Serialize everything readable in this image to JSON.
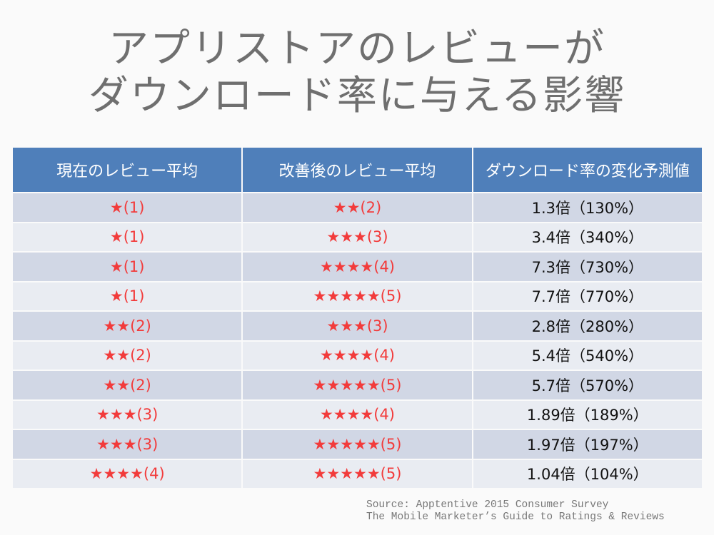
{
  "title": {
    "line1": "アプリストアのレビューが",
    "line2": "ダウンロード率に与える影響"
  },
  "table": {
    "headers": [
      "現在のレビュー平均",
      "改善後のレビュー平均",
      "ダウンロード率の変化予測値"
    ],
    "rows": [
      [
        "★(1)",
        "★★(2)",
        "1.3倍（130%）"
      ],
      [
        "★(1)",
        "★★★(3)",
        "3.4倍（340%）"
      ],
      [
        "★(1)",
        "★★★★(4)",
        "7.3倍（730%）"
      ],
      [
        "★(1)",
        "★★★★★(5)",
        "7.7倍（770%）"
      ],
      [
        "★★(2)",
        "★★★(3)",
        "2.8倍（280%）"
      ],
      [
        "★★(2)",
        "★★★★(4)",
        "5.4倍（540%）"
      ],
      [
        "★★(2)",
        "★★★★★(5)",
        "5.7倍（570%）"
      ],
      [
        "★★★(3)",
        "★★★★(4)",
        "1.89倍（189%）"
      ],
      [
        "★★★(3)",
        "★★★★★(5)",
        "1.97倍（197%）"
      ],
      [
        "★★★★(4)",
        "★★★★★(5)",
        "1.04倍（104%）"
      ]
    ]
  },
  "source": {
    "line1": "Source: Apptentive 2015 Consumer Survey",
    "line2": "The Mobile Marketer’s Guide to Ratings & Reviews"
  },
  "colors": {
    "header": "#4f7fba",
    "star": "#f23b3b",
    "row_dark": "#d1d7e5",
    "row_light": "#e9ecf2"
  }
}
